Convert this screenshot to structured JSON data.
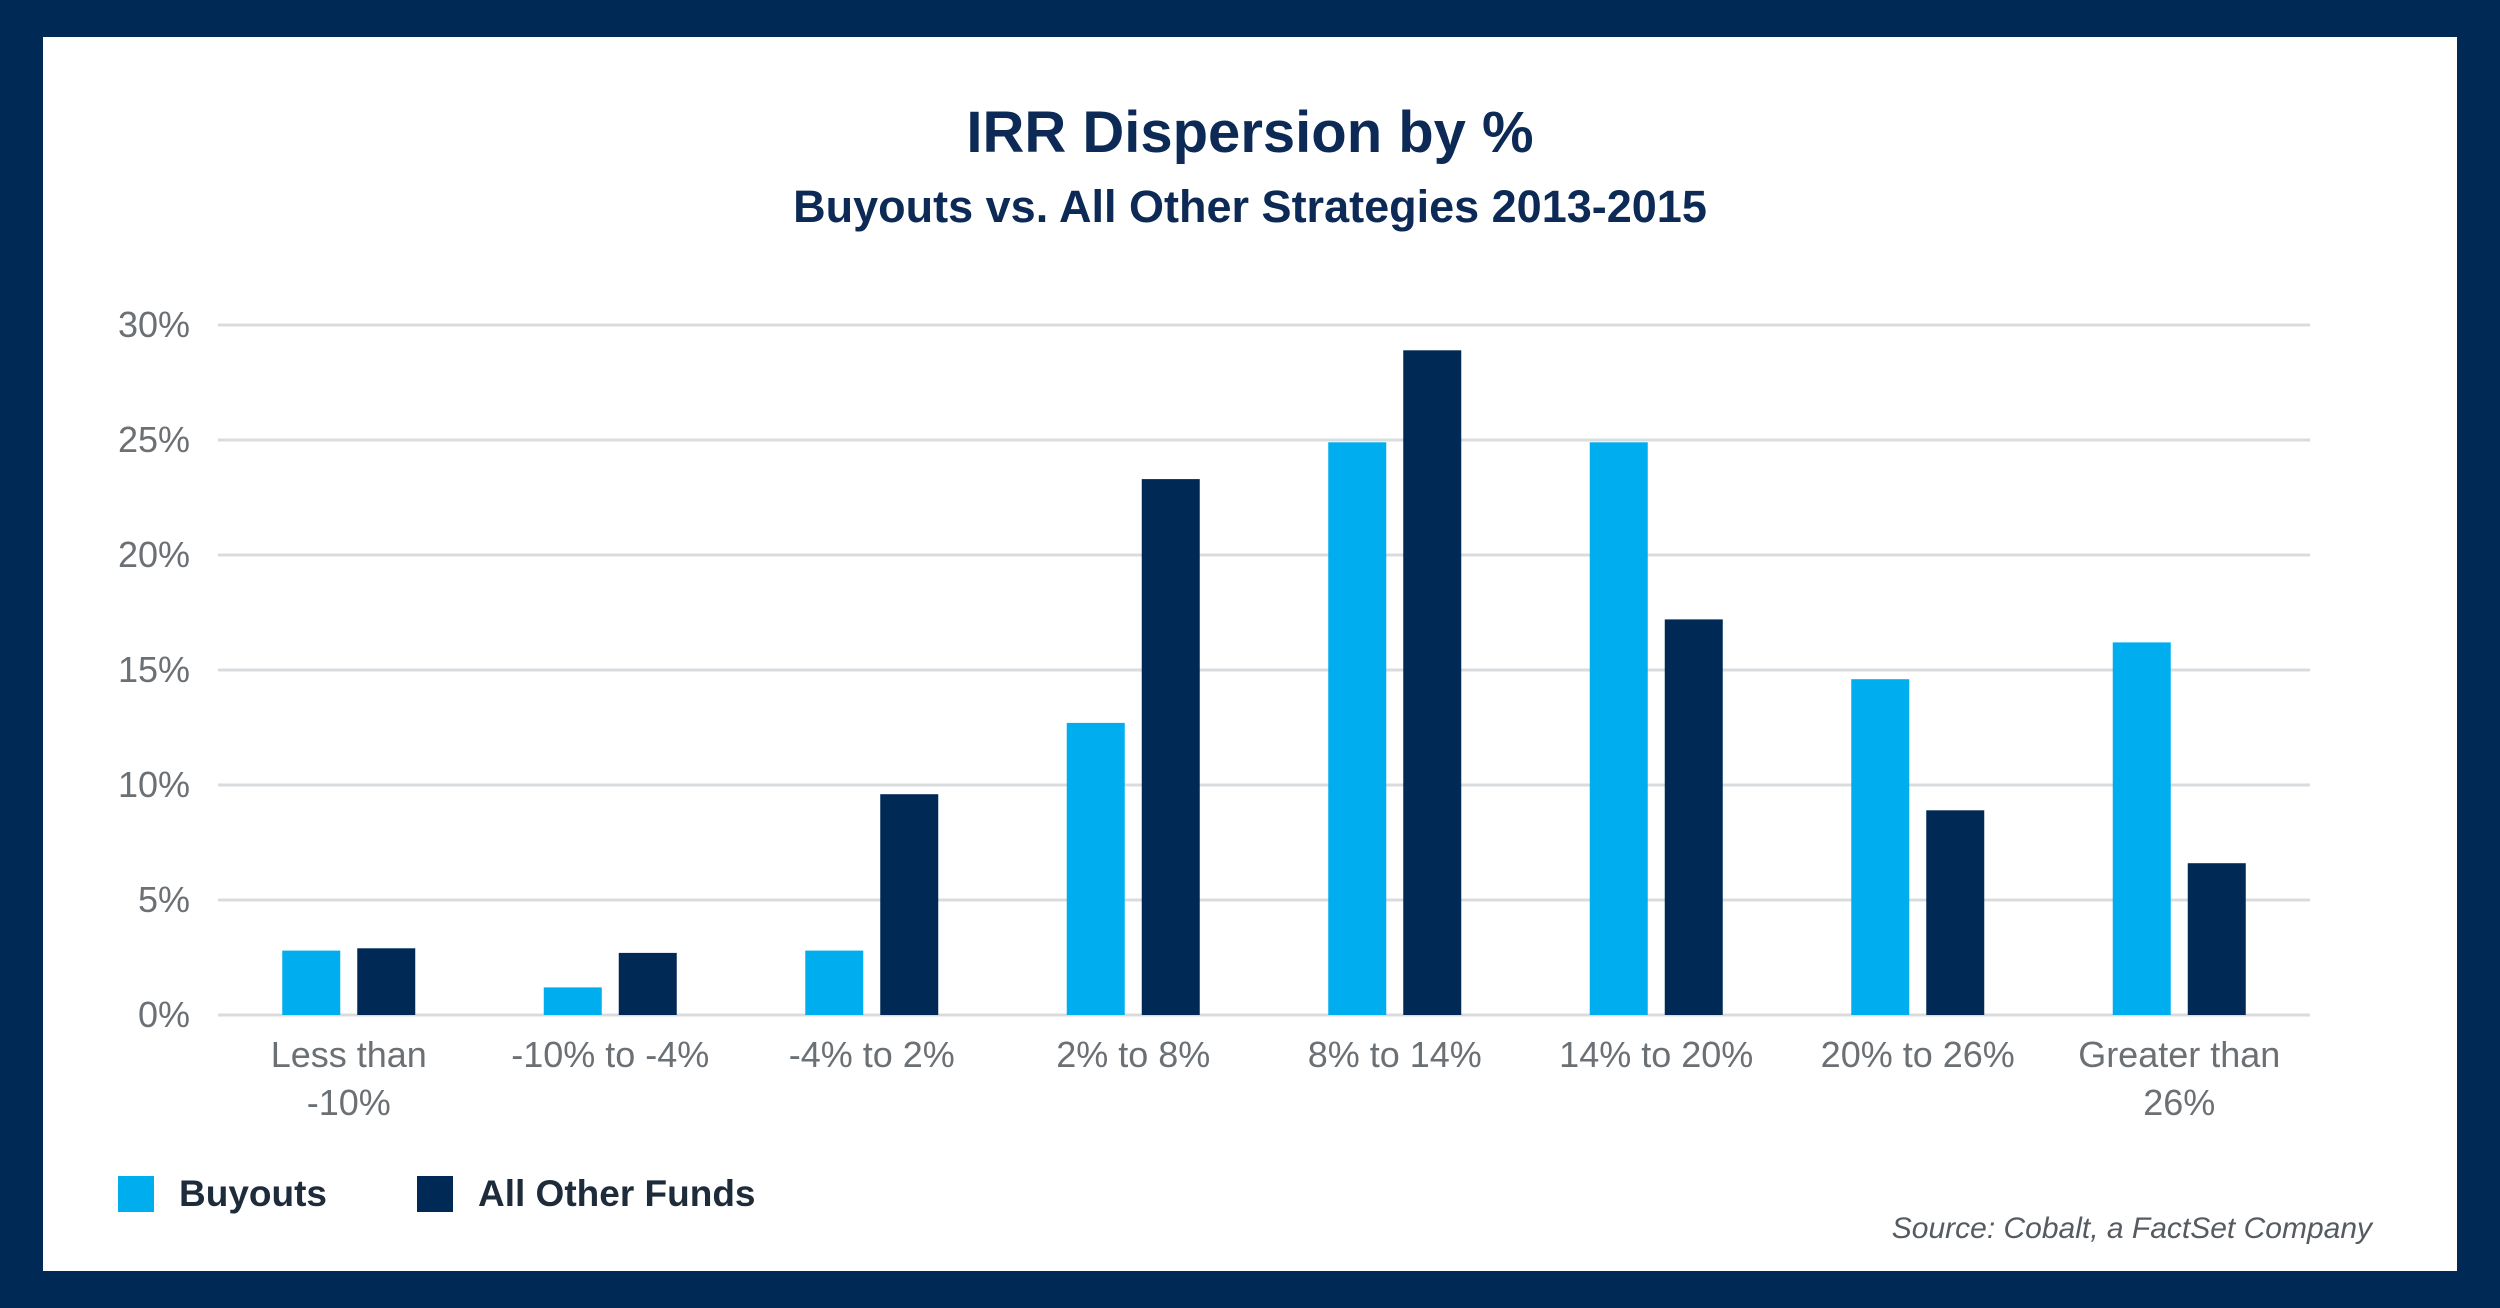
{
  "chart_data": {
    "type": "bar",
    "title": "IRR Dispersion by %",
    "subtitle": "Buyouts vs. All Other Strategies 2013-2015",
    "categories": [
      [
        "Less than",
        "-10%"
      ],
      [
        "-10% to -4%"
      ],
      [
        "-4% to 2%"
      ],
      [
        "2% to 8%"
      ],
      [
        "8% to 14%"
      ],
      [
        "14% to 20%"
      ],
      [
        "20% to 26%"
      ],
      [
        "Greater than",
        "26%"
      ]
    ],
    "series": [
      {
        "name": "Buyouts",
        "color": "#00aeef",
        "values": [
          2.8,
          1.2,
          2.8,
          12.7,
          24.9,
          24.9,
          14.6,
          16.2
        ]
      },
      {
        "name": "All Other Funds",
        "color": "#002a55",
        "values": [
          2.9,
          2.7,
          9.6,
          23.3,
          28.9,
          17.2,
          8.9,
          6.6
        ]
      }
    ],
    "yticks": [
      "0%",
      "5%",
      "10%",
      "15%",
      "20%",
      "25%",
      "30%"
    ],
    "ylim": [
      0,
      30
    ],
    "xlabel": "",
    "ylabel": "",
    "legend_position": "bottom-left"
  },
  "source": "Source: Cobalt, a FactSet Company"
}
